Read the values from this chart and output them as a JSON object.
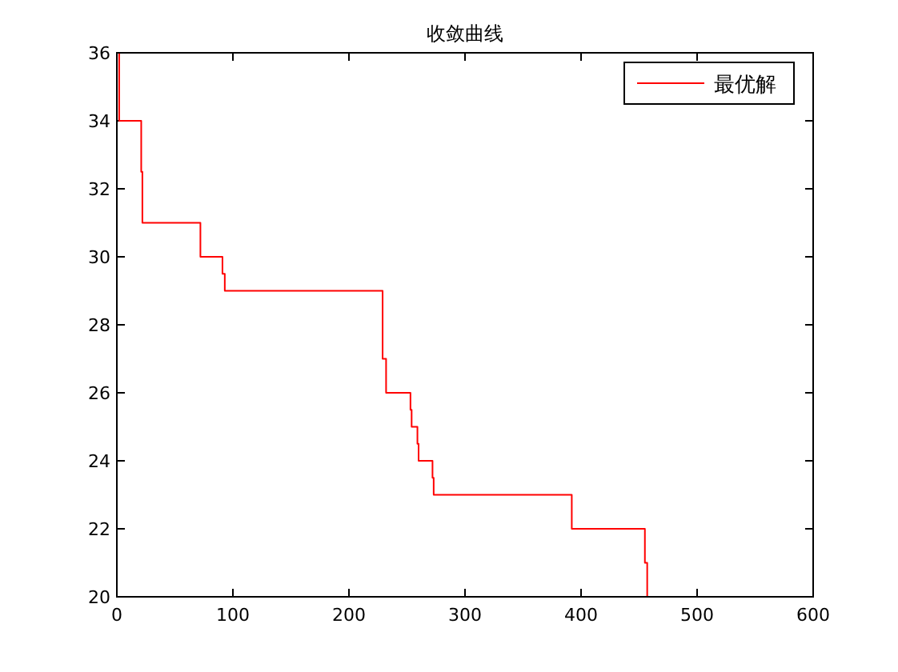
{
  "chart_data": {
    "type": "step",
    "title": "收敛曲线",
    "xlim": [
      0,
      600
    ],
    "xticks": [
      0,
      100,
      200,
      300,
      400,
      500,
      600
    ],
    "ylim": [
      20,
      36
    ],
    "yticks": [
      20,
      22,
      24,
      26,
      28,
      30,
      32,
      34,
      36
    ],
    "grid": false,
    "legend": "top right",
    "line_style": "solid",
    "marker": "none",
    "series": [
      {
        "name": "最优解",
        "color": "#ff0000",
        "x": [
          1,
          2,
          21,
          22,
          72,
          91,
          93,
          229,
          232,
          253,
          254,
          259,
          260,
          272,
          273,
          392,
          455,
          457
        ],
        "values": [
          36,
          34,
          32.5,
          31,
          30,
          29.5,
          29,
          27,
          26,
          25.5,
          25,
          24.5,
          24,
          23.5,
          23,
          22,
          21,
          20
        ]
      }
    ]
  }
}
